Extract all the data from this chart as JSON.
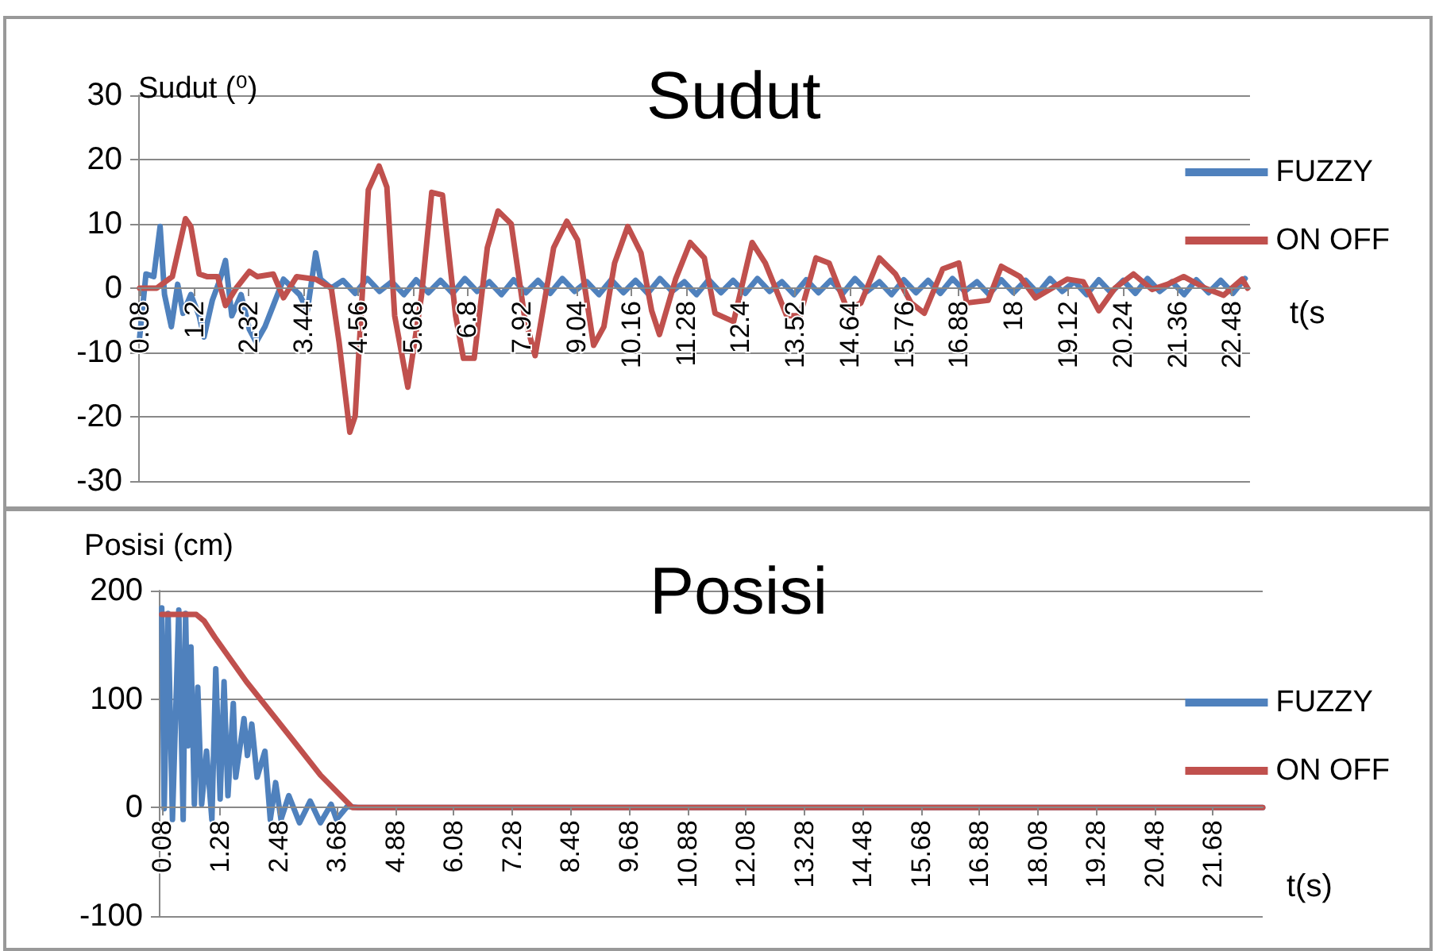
{
  "chart_data": [
    {
      "type": "line",
      "title": "Sudut",
      "ylabel": "Sudut (⁰)",
      "xlabel": "t(s",
      "legend": "right",
      "grid": "y",
      "marker": "none",
      "line_style": "solid",
      "xlim": [
        0.05,
        22.85
      ],
      "xticks": [
        0.08,
        1.2,
        2.32,
        3.44,
        4.56,
        5.68,
        6.8,
        7.92,
        9.04,
        10.16,
        11.28,
        12.4,
        13.52,
        14.64,
        15.76,
        16.88,
        18,
        19.12,
        20.24,
        21.36,
        22.48
      ],
      "ylim": [
        -30,
        30
      ],
      "yticks": [
        -30,
        -20,
        -10,
        0,
        10,
        20,
        30
      ],
      "series": [
        {
          "name": "FUZZY",
          "color": "#4f81bd",
          "x": [
            0.08,
            0.21,
            0.37,
            0.5,
            0.59,
            0.73,
            0.86,
            0.97,
            1.13,
            1.3,
            1.4,
            1.57,
            1.73,
            1.84,
            1.97,
            2.16,
            2.33,
            2.47,
            2.65,
            2.82,
            3.03,
            3.36,
            3.52,
            3.69,
            3.79,
            4.01,
            4.25,
            4.5,
            4.75,
            5,
            5.25,
            5.5,
            5.75,
            6,
            6.25,
            6.5,
            6.75,
            7,
            7.25,
            7.5,
            7.75,
            8,
            8.25,
            8.5,
            8.75,
            9,
            9.25,
            9.5,
            9.75,
            10,
            10.25,
            10.5,
            10.75,
            11,
            11.25,
            11.5,
            11.75,
            12,
            12.25,
            12.5,
            12.75,
            13,
            13.25,
            13.5,
            13.75,
            14,
            14.25,
            14.5,
            14.75,
            15,
            15.25,
            15.5,
            15.75,
            16,
            16.25,
            16.5,
            16.75,
            17,
            17.25,
            17.5,
            17.75,
            18,
            18.25,
            18.5,
            18.75,
            19,
            19.25,
            19.5,
            19.75,
            20,
            20.25,
            20.5,
            20.75,
            21,
            21.25,
            21.5,
            21.75,
            22,
            22.25,
            22.5,
            22.75
          ],
          "values": [
            -7.6,
            2.2,
            1.8,
            9.6,
            -1,
            -6,
            0.6,
            -3.9,
            -1,
            -4.3,
            -7.6,
            -1.9,
            1.4,
            4.3,
            -4.3,
            -1,
            -6.4,
            -8.4,
            -6,
            -2.7,
            1.4,
            -1,
            -3.5,
            5.5,
            1.4,
            0,
            1.2,
            -0.8,
            1.5,
            -0.5,
            1,
            -1,
            1.3,
            -0.7,
            1.2,
            -0.8,
            1.5,
            -0.5,
            1,
            -1,
            1.3,
            -0.7,
            1.2,
            -0.8,
            1.5,
            -0.5,
            1,
            -1,
            1.3,
            -0.7,
            1.2,
            -0.8,
            1.5,
            -0.5,
            1,
            -1,
            1.3,
            -0.7,
            1.2,
            -0.8,
            1.5,
            -0.5,
            1,
            -1,
            1.3,
            -0.7,
            1.2,
            -0.8,
            1.5,
            -0.5,
            1,
            -1,
            1.3,
            -0.7,
            1.2,
            -0.8,
            1.5,
            -0.5,
            1,
            -1,
            1.3,
            -0.7,
            1.2,
            -0.8,
            1.5,
            -0.5,
            1,
            -1,
            1.3,
            -0.7,
            1.2,
            -0.8,
            1.5,
            -0.5,
            1,
            -1,
            1.3,
            -0.7,
            1.2,
            -0.8,
            1.5
          ]
        },
        {
          "name": "ON OFF",
          "color": "#c0504d",
          "x": [
            0.08,
            0.43,
            0.75,
            1.02,
            1.13,
            1.3,
            1.46,
            1.68,
            1.84,
            2.06,
            2.33,
            2.49,
            2.82,
            3.03,
            3.3,
            3.69,
            4.01,
            4.17,
            4.39,
            4.5,
            4.77,
            4.99,
            5.15,
            5.31,
            5.58,
            5.86,
            6.07,
            6.29,
            6.56,
            6.72,
            6.94,
            7.21,
            7.43,
            7.7,
            7.97,
            8.19,
            8.57,
            8.84,
            9.06,
            9.39,
            9.6,
            9.82,
            10.09,
            10.36,
            10.58,
            10.74,
            11.07,
            11.37,
            11.66,
            11.88,
            12.26,
            12.64,
            12.91,
            13.35,
            13.62,
            13.95,
            14.22,
            14.6,
            14.87,
            15.25,
            15.58,
            15.9,
            16.17,
            16.55,
            16.88,
            17.04,
            17.48,
            17.75,
            18.13,
            18.45,
            19.1,
            19.43,
            19.75,
            20.08,
            20.46,
            20.84,
            21.16,
            21.49,
            21.93,
            22.31,
            22.69,
            22.8
          ],
          "values": [
            0,
            0,
            1.8,
            10.8,
            9.6,
            2.2,
            1.8,
            1.8,
            -2.7,
            0,
            2.6,
            1.8,
            2.2,
            -1.5,
            1.8,
            1.4,
            0,
            -8.4,
            -22.4,
            -19.9,
            15.3,
            19,
            15.7,
            -4.3,
            -15.4,
            -1.2,
            14.9,
            14.5,
            -4.3,
            -10.9,
            -10.9,
            6.3,
            12,
            10,
            -4.3,
            -10.5,
            6.3,
            10.4,
            7.5,
            -8.9,
            -6,
            3.9,
            9.6,
            5.5,
            -3.5,
            -7.2,
            1.4,
            7.1,
            4.7,
            -3.9,
            -5.2,
            7.1,
            3.9,
            -4.3,
            -4.3,
            4.7,
            3.9,
            -3.5,
            -2.3,
            4.7,
            2.2,
            -2.3,
            -3.9,
            3,
            3.9,
            -2.3,
            -1.9,
            3.4,
            1.8,
            -1.5,
            1.4,
            1,
            -3.5,
            0,
            2.2,
            -0.2,
            0.6,
            1.8,
            0,
            -1.1,
            1.4,
            0
          ]
        }
      ]
    },
    {
      "type": "line",
      "title": "Posisi",
      "ylabel": "Posisi (cm)",
      "xlabel": "t(s)",
      "legend": "right",
      "grid": "y",
      "marker": "none",
      "line_style": "solid",
      "xlim": [
        0.02,
        22.7
      ],
      "xticks": [
        0.08,
        1.28,
        2.48,
        3.68,
        4.88,
        6.08,
        7.28,
        8.48,
        9.68,
        10.88,
        12.08,
        13.28,
        14.48,
        15.68,
        16.88,
        18.08,
        19.28,
        20.48,
        21.68
      ],
      "ylim": [
        -100,
        200
      ],
      "yticks": [
        -100,
        0,
        100,
        200
      ],
      "series": [
        {
          "name": "FUZZY",
          "color": "#4f81bd",
          "x": [
            0.08,
            0.13,
            0.21,
            0.3,
            0.43,
            0.52,
            0.57,
            0.62,
            0.68,
            0.75,
            0.82,
            0.9,
            1.0,
            1.11,
            1.19,
            1.28,
            1.36,
            1.44,
            1.55,
            1.6,
            1.77,
            1.84,
            1.93,
            2.04,
            2.2,
            2.31,
            2.42,
            2.53,
            2.69,
            2.91,
            3.13,
            3.34,
            3.56,
            3.67,
            3.89,
            4.11,
            22.7
          ],
          "values": [
            184,
            -1,
            179,
            -11,
            182,
            -11,
            179,
            57,
            148,
            3,
            111,
            3,
            52,
            -11,
            128,
            8,
            116,
            11,
            96,
            28,
            82,
            48,
            77,
            28,
            52,
            -11,
            23,
            -11,
            11,
            -14,
            6,
            -14,
            3,
            -11,
            1,
            0,
            0
          ]
        },
        {
          "name": "ON OFF",
          "color": "#c0504d",
          "x": [
            0.08,
            0.79,
            0.95,
            1.17,
            1.82,
            2.69,
            3.34,
            4.0,
            22.7
          ],
          "values": [
            178,
            178,
            172,
            157,
            116,
            67,
            30,
            0,
            0
          ]
        }
      ]
    }
  ]
}
